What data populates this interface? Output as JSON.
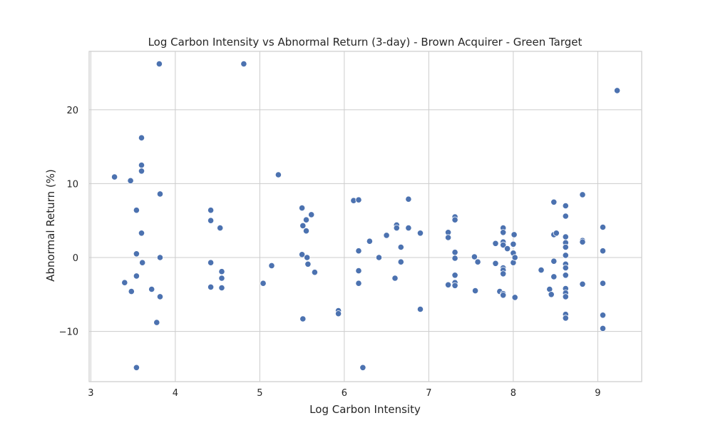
{
  "chart_data": {
    "type": "scatter",
    "title": "Log Carbon Intensity vs Abnormal Return (3-day) - Brown Acquirer - Green Target",
    "xlabel": "Log Carbon Intensity",
    "ylabel": "Abnormal Return (%)",
    "xlim": [
      2.98,
      9.52
    ],
    "ylim": [
      -16.8,
      27.9
    ],
    "xticks": [
      3,
      4,
      5,
      6,
      7,
      8,
      9
    ],
    "yticks": [
      -10,
      0,
      10,
      20
    ],
    "grid": true,
    "legend": "none",
    "color": "#4c72b0",
    "points": [
      [
        3.28,
        10.9
      ],
      [
        3.4,
        -3.4
      ],
      [
        3.47,
        10.4
      ],
      [
        3.48,
        -4.6
      ],
      [
        3.54,
        6.4
      ],
      [
        3.54,
        0.5
      ],
      [
        3.54,
        -2.5
      ],
      [
        3.54,
        -14.9
      ],
      [
        3.6,
        16.2
      ],
      [
        3.6,
        12.5
      ],
      [
        3.6,
        11.7
      ],
      [
        3.6,
        3.3
      ],
      [
        3.61,
        -0.7
      ],
      [
        3.72,
        -4.3
      ],
      [
        3.78,
        -8.8
      ],
      [
        3.81,
        26.2
      ],
      [
        3.82,
        8.6
      ],
      [
        3.82,
        0.0
      ],
      [
        3.82,
        -5.3
      ],
      [
        4.42,
        6.4
      ],
      [
        4.42,
        5.0
      ],
      [
        4.42,
        -0.7
      ],
      [
        4.42,
        -4.0
      ],
      [
        4.53,
        4.0
      ],
      [
        4.55,
        -1.9
      ],
      [
        4.55,
        -2.8
      ],
      [
        4.55,
        -4.1
      ],
      [
        4.81,
        26.2
      ],
      [
        5.04,
        -3.5
      ],
      [
        5.14,
        -1.1
      ],
      [
        5.22,
        11.2
      ],
      [
        5.5,
        6.7
      ],
      [
        5.51,
        4.3
      ],
      [
        5.5,
        0.4
      ],
      [
        5.51,
        -8.3
      ],
      [
        5.55,
        5.1
      ],
      [
        5.55,
        3.6
      ],
      [
        5.56,
        0.0
      ],
      [
        5.57,
        -0.9
      ],
      [
        5.61,
        5.8
      ],
      [
        5.65,
        -2.0
      ],
      [
        5.93,
        -7.2
      ],
      [
        5.93,
        -7.6
      ],
      [
        6.11,
        7.7
      ],
      [
        6.17,
        7.8
      ],
      [
        6.17,
        0.9
      ],
      [
        6.17,
        -1.8
      ],
      [
        6.17,
        -3.5
      ],
      [
        6.22,
        -14.9
      ],
      [
        6.3,
        2.2
      ],
      [
        6.41,
        0.0
      ],
      [
        6.5,
        3.0
      ],
      [
        6.6,
        -2.8
      ],
      [
        6.62,
        4.4
      ],
      [
        6.62,
        4.0
      ],
      [
        6.67,
        1.4
      ],
      [
        6.67,
        -0.6
      ],
      [
        6.76,
        7.9
      ],
      [
        6.76,
        4.0
      ],
      [
        6.9,
        3.3
      ],
      [
        6.9,
        -7.0
      ],
      [
        7.23,
        3.4
      ],
      [
        7.23,
        2.7
      ],
      [
        7.23,
        -3.7
      ],
      [
        7.31,
        5.5
      ],
      [
        7.31,
        5.1
      ],
      [
        7.31,
        0.7
      ],
      [
        7.31,
        -0.1
      ],
      [
        7.31,
        -2.4
      ],
      [
        7.31,
        -3.4
      ],
      [
        7.31,
        -3.8
      ],
      [
        7.54,
        0.1
      ],
      [
        7.55,
        -4.5
      ],
      [
        7.58,
        -0.6
      ],
      [
        7.79,
        1.9
      ],
      [
        7.79,
        -0.8
      ],
      [
        7.84,
        -4.6
      ],
      [
        7.88,
        4.0
      ],
      [
        7.88,
        3.4
      ],
      [
        7.88,
        2.1
      ],
      [
        7.88,
        1.7
      ],
      [
        7.88,
        -1.4
      ],
      [
        7.88,
        -1.7
      ],
      [
        7.88,
        -2.2
      ],
      [
        7.88,
        -4.9
      ],
      [
        7.88,
        -5.1
      ],
      [
        7.93,
        1.2
      ],
      [
        8.0,
        1.8
      ],
      [
        8.0,
        0.6
      ],
      [
        8.0,
        -0.7
      ],
      [
        8.01,
        3.1
      ],
      [
        8.02,
        0.0
      ],
      [
        8.02,
        -5.4
      ],
      [
        8.33,
        -1.7
      ],
      [
        8.43,
        -4.3
      ],
      [
        8.45,
        -5.0
      ],
      [
        8.48,
        7.5
      ],
      [
        8.48,
        3.1
      ],
      [
        8.48,
        -0.5
      ],
      [
        8.48,
        -2.6
      ],
      [
        8.51,
        3.3
      ],
      [
        8.62,
        7.0
      ],
      [
        8.62,
        5.6
      ],
      [
        8.62,
        2.8
      ],
      [
        8.62,
        2.0
      ],
      [
        8.62,
        1.4
      ],
      [
        8.62,
        0.3
      ],
      [
        8.62,
        -0.9
      ],
      [
        8.62,
        -1.4
      ],
      [
        8.62,
        -2.4
      ],
      [
        8.62,
        -4.2
      ],
      [
        8.62,
        -4.8
      ],
      [
        8.62,
        -5.3
      ],
      [
        8.62,
        -7.7
      ],
      [
        8.62,
        -8.2
      ],
      [
        8.82,
        8.5
      ],
      [
        8.82,
        2.3
      ],
      [
        8.82,
        2.1
      ],
      [
        8.82,
        -3.6
      ],
      [
        9.06,
        4.1
      ],
      [
        9.06,
        0.9
      ],
      [
        9.06,
        -3.5
      ],
      [
        9.06,
        -7.8
      ],
      [
        9.06,
        -9.6
      ],
      [
        9.23,
        22.6
      ]
    ]
  }
}
